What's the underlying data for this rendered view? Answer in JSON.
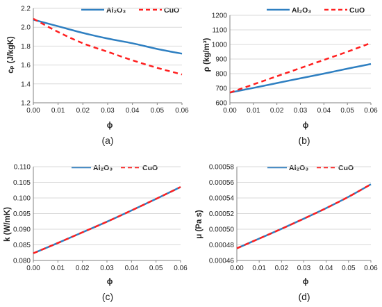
{
  "colors": {
    "al2o3": "#2e7fc1",
    "cuo": "#ff1f1f",
    "grid": "#d9d9d9",
    "axis": "#808080"
  },
  "chart_data": [
    {
      "type": "line",
      "panel_label": "(a)",
      "xlabel": "ϕ",
      "ylabel": "cₚ (J/kgK)",
      "xlim": [
        0,
        0.06
      ],
      "ylim": [
        1.2,
        2.2
      ],
      "x_ticks": [
        "0.00",
        "0.01",
        "0.02",
        "0.03",
        "0.04",
        "0.05",
        "0.06"
      ],
      "y_ticks": [
        "1.2",
        "1.4",
        "1.6",
        "1.8",
        "2.0",
        "2.2"
      ],
      "legend": "top-right",
      "grid": true,
      "x": [
        0,
        0.01,
        0.02,
        0.03,
        0.04,
        0.05,
        0.06
      ],
      "series": [
        {
          "name": "Al₂O₃",
          "color": "#2e7fc1",
          "dash": "solid",
          "values": [
            2.08,
            2.01,
            1.94,
            1.88,
            1.83,
            1.77,
            1.72
          ]
        },
        {
          "name": "CuO",
          "color": "#ff1f1f",
          "dash": "dashed",
          "values": [
            2.09,
            1.95,
            1.83,
            1.74,
            1.65,
            1.57,
            1.5
          ]
        }
      ]
    },
    {
      "type": "line",
      "panel_label": "(b)",
      "xlabel": "ϕ",
      "ylabel": "ρ (kg/m³)",
      "xlim": [
        0,
        0.06
      ],
      "ylim": [
        600,
        1200
      ],
      "x_ticks": [
        "0.00",
        "0.01",
        "0.02",
        "0.03",
        "0.04",
        "0.05",
        "0.06"
      ],
      "y_ticks": [
        "600",
        "700",
        "800",
        "900",
        "1000",
        "1100",
        "1200"
      ],
      "legend": "top-right",
      "grid": true,
      "x": [
        0,
        0.01,
        0.02,
        0.03,
        0.04,
        0.05,
        0.06
      ],
      "series": [
        {
          "name": "Al₂O₃",
          "color": "#2e7fc1",
          "dash": "solid",
          "values": [
            670,
            702,
            735,
            768,
            800,
            834,
            866
          ]
        },
        {
          "name": "CuO",
          "color": "#ff1f1f",
          "dash": "dashed",
          "values": [
            670,
            726,
            782,
            838,
            894,
            950,
            1010
          ]
        }
      ]
    },
    {
      "type": "line",
      "panel_label": "(c)",
      "xlabel": "ϕ",
      "ylabel": "k (W/mK)",
      "xlim": [
        0,
        0.06
      ],
      "ylim": [
        0.08,
        0.11
      ],
      "x_ticks": [
        "0.00",
        "0.01",
        "0.02",
        "0.03",
        "0.04",
        "0.05",
        "0.06"
      ],
      "y_ticks": [
        "0.080",
        "0.085",
        "0.090",
        "0.095",
        "0.100",
        "0.105",
        "0.110"
      ],
      "legend": "top-right",
      "grid": true,
      "x": [
        0,
        0.01,
        0.02,
        0.03,
        0.04,
        0.05,
        0.06
      ],
      "series": [
        {
          "name": "Al₂O₃",
          "color": "#2e7fc1",
          "dash": "solid",
          "values": [
            0.0823,
            0.0856,
            0.089,
            0.0924,
            0.096,
            0.0997,
            0.1035
          ]
        },
        {
          "name": "CuO",
          "color": "#ff1f1f",
          "dash": "dashed",
          "values": [
            0.0823,
            0.0856,
            0.089,
            0.0924,
            0.096,
            0.0997,
            0.1035
          ]
        }
      ]
    },
    {
      "type": "line",
      "panel_label": "(d)",
      "xlabel": "ϕ",
      "ylabel": "μ (Pa s)",
      "xlim": [
        0,
        0.06
      ],
      "ylim": [
        0.00046,
        0.00058
      ],
      "x_ticks": [
        "0.00",
        "0.01",
        "0.02",
        "0.03",
        "0.04",
        "0.05",
        "0.06"
      ],
      "y_ticks": [
        "0.00046",
        "0.00048",
        "0.00050",
        "0.00052",
        "0.00054",
        "0.00056",
        "0.00058"
      ],
      "legend": "top-right",
      "grid": true,
      "x": [
        0,
        0.01,
        0.02,
        0.03,
        0.04,
        0.05,
        0.06
      ],
      "series": [
        {
          "name": "Al₂O₃",
          "color": "#2e7fc1",
          "dash": "solid",
          "values": [
            0.0004755,
            0.000488,
            0.0005005,
            0.0005135,
            0.000527,
            0.0005415,
            0.0005575
          ]
        },
        {
          "name": "CuO",
          "color": "#ff1f1f",
          "dash": "dashed",
          "values": [
            0.0004755,
            0.000488,
            0.0005005,
            0.0005135,
            0.000527,
            0.0005415,
            0.0005575
          ]
        }
      ]
    }
  ]
}
